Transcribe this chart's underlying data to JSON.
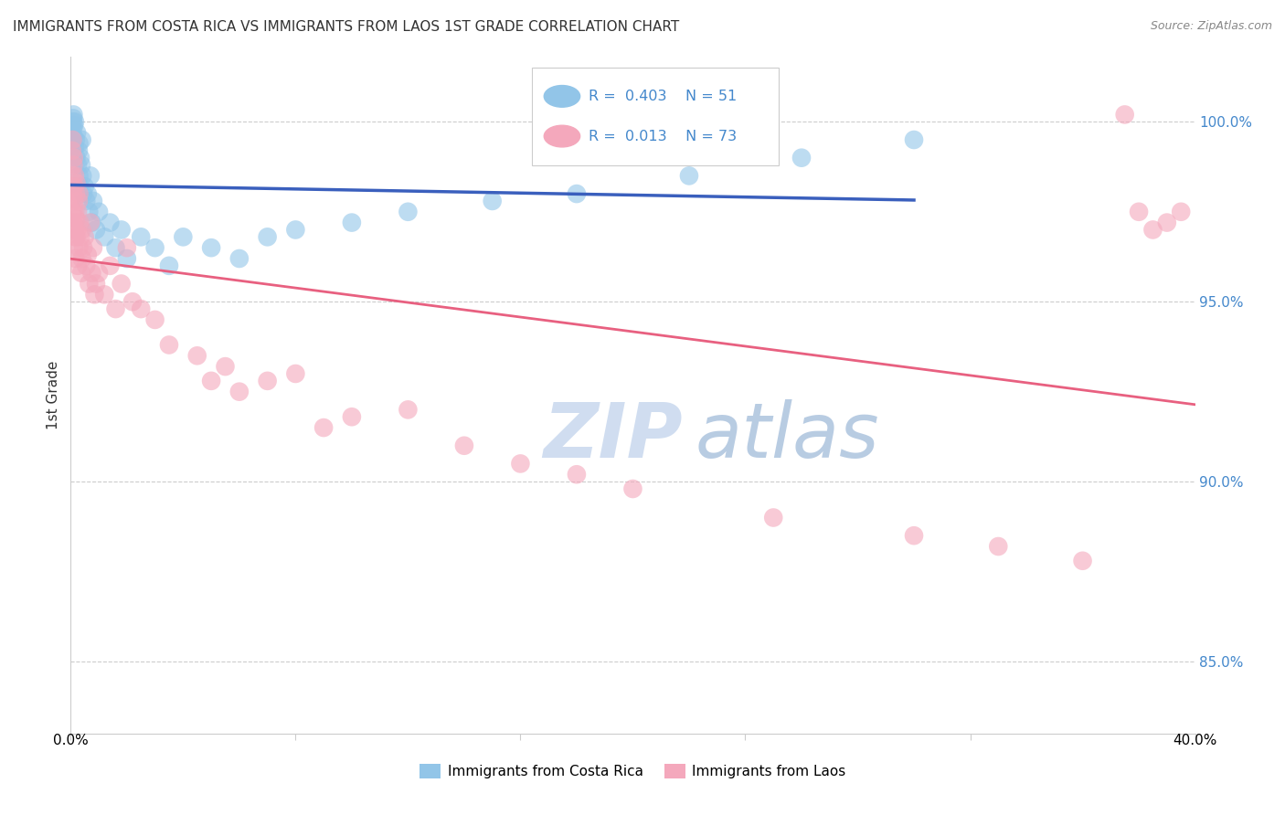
{
  "title": "IMMIGRANTS FROM COSTA RICA VS IMMIGRANTS FROM LAOS 1ST GRADE CORRELATION CHART",
  "source": "Source: ZipAtlas.com",
  "ylabel": "1st Grade",
  "xlim": [
    0.0,
    40.0
  ],
  "ylim": [
    83.0,
    101.8
  ],
  "yticks": [
    85.0,
    90.0,
    95.0,
    100.0
  ],
  "ytick_labels": [
    "85.0%",
    "90.0%",
    "95.0%",
    "100.0%"
  ],
  "watermark_zip": "ZIP",
  "watermark_atlas": "atlas",
  "legend_r_blue": "0.403",
  "legend_n_blue": "51",
  "legend_r_pink": "0.013",
  "legend_n_pink": "73",
  "legend_label_blue": "Immigrants from Costa Rica",
  "legend_label_pink": "Immigrants from Laos",
  "blue_color": "#92C5E8",
  "pink_color": "#F4A8BC",
  "trendline_blue": "#3A5FBD",
  "trendline_pink": "#E86080",
  "cr_x": [
    0.05,
    0.07,
    0.08,
    0.09,
    0.1,
    0.1,
    0.12,
    0.15,
    0.15,
    0.18,
    0.2,
    0.22,
    0.25,
    0.28,
    0.3,
    0.3,
    0.32,
    0.35,
    0.38,
    0.4,
    0.42,
    0.45,
    0.5,
    0.55,
    0.6,
    0.65,
    0.7,
    0.75,
    0.8,
    0.9,
    1.0,
    1.2,
    1.4,
    1.6,
    1.8,
    2.0,
    2.5,
    3.0,
    3.5,
    4.0,
    5.0,
    6.0,
    7.0,
    8.0,
    10.0,
    12.0,
    15.0,
    18.0,
    22.0,
    26.0,
    30.0
  ],
  "cr_y": [
    99.5,
    99.8,
    100.0,
    100.1,
    100.2,
    99.6,
    99.9,
    99.3,
    100.0,
    99.5,
    99.0,
    99.7,
    98.8,
    99.2,
    98.5,
    99.4,
    98.2,
    99.0,
    98.8,
    99.5,
    98.5,
    98.0,
    98.2,
    97.8,
    98.0,
    97.5,
    98.5,
    97.2,
    97.8,
    97.0,
    97.5,
    96.8,
    97.2,
    96.5,
    97.0,
    96.2,
    96.8,
    96.5,
    96.0,
    96.8,
    96.5,
    96.2,
    96.8,
    97.0,
    97.2,
    97.5,
    97.8,
    98.0,
    98.5,
    99.0,
    99.5
  ],
  "laos_x": [
    0.05,
    0.06,
    0.07,
    0.08,
    0.09,
    0.1,
    0.1,
    0.11,
    0.12,
    0.12,
    0.13,
    0.14,
    0.15,
    0.15,
    0.16,
    0.17,
    0.18,
    0.19,
    0.2,
    0.2,
    0.22,
    0.25,
    0.25,
    0.28,
    0.3,
    0.3,
    0.32,
    0.35,
    0.38,
    0.4,
    0.4,
    0.45,
    0.5,
    0.55,
    0.6,
    0.65,
    0.7,
    0.75,
    0.8,
    0.85,
    0.9,
    1.0,
    1.2,
    1.4,
    1.6,
    1.8,
    2.0,
    2.2,
    2.5,
    3.0,
    3.5,
    4.5,
    5.0,
    5.5,
    6.0,
    7.0,
    8.0,
    9.0,
    10.0,
    12.0,
    14.0,
    16.0,
    18.0,
    20.0,
    25.0,
    30.0,
    33.0,
    36.0,
    38.0,
    38.5,
    39.0,
    39.5,
    37.5
  ],
  "laos_y": [
    99.2,
    98.5,
    99.5,
    98.0,
    97.5,
    98.8,
    97.2,
    99.0,
    97.8,
    96.5,
    98.2,
    97.0,
    98.5,
    96.8,
    97.5,
    96.2,
    98.0,
    97.3,
    96.8,
    98.3,
    97.0,
    97.5,
    96.0,
    97.8,
    96.5,
    98.0,
    97.2,
    96.8,
    95.8,
    97.0,
    96.2,
    96.5,
    96.8,
    96.0,
    96.3,
    95.5,
    97.2,
    95.8,
    96.5,
    95.2,
    95.5,
    95.8,
    95.2,
    96.0,
    94.8,
    95.5,
    96.5,
    95.0,
    94.8,
    94.5,
    93.8,
    93.5,
    92.8,
    93.2,
    92.5,
    92.8,
    93.0,
    91.5,
    91.8,
    92.0,
    91.0,
    90.5,
    90.2,
    89.8,
    89.0,
    88.5,
    88.2,
    87.8,
    97.5,
    97.0,
    97.2,
    97.5,
    100.2
  ]
}
